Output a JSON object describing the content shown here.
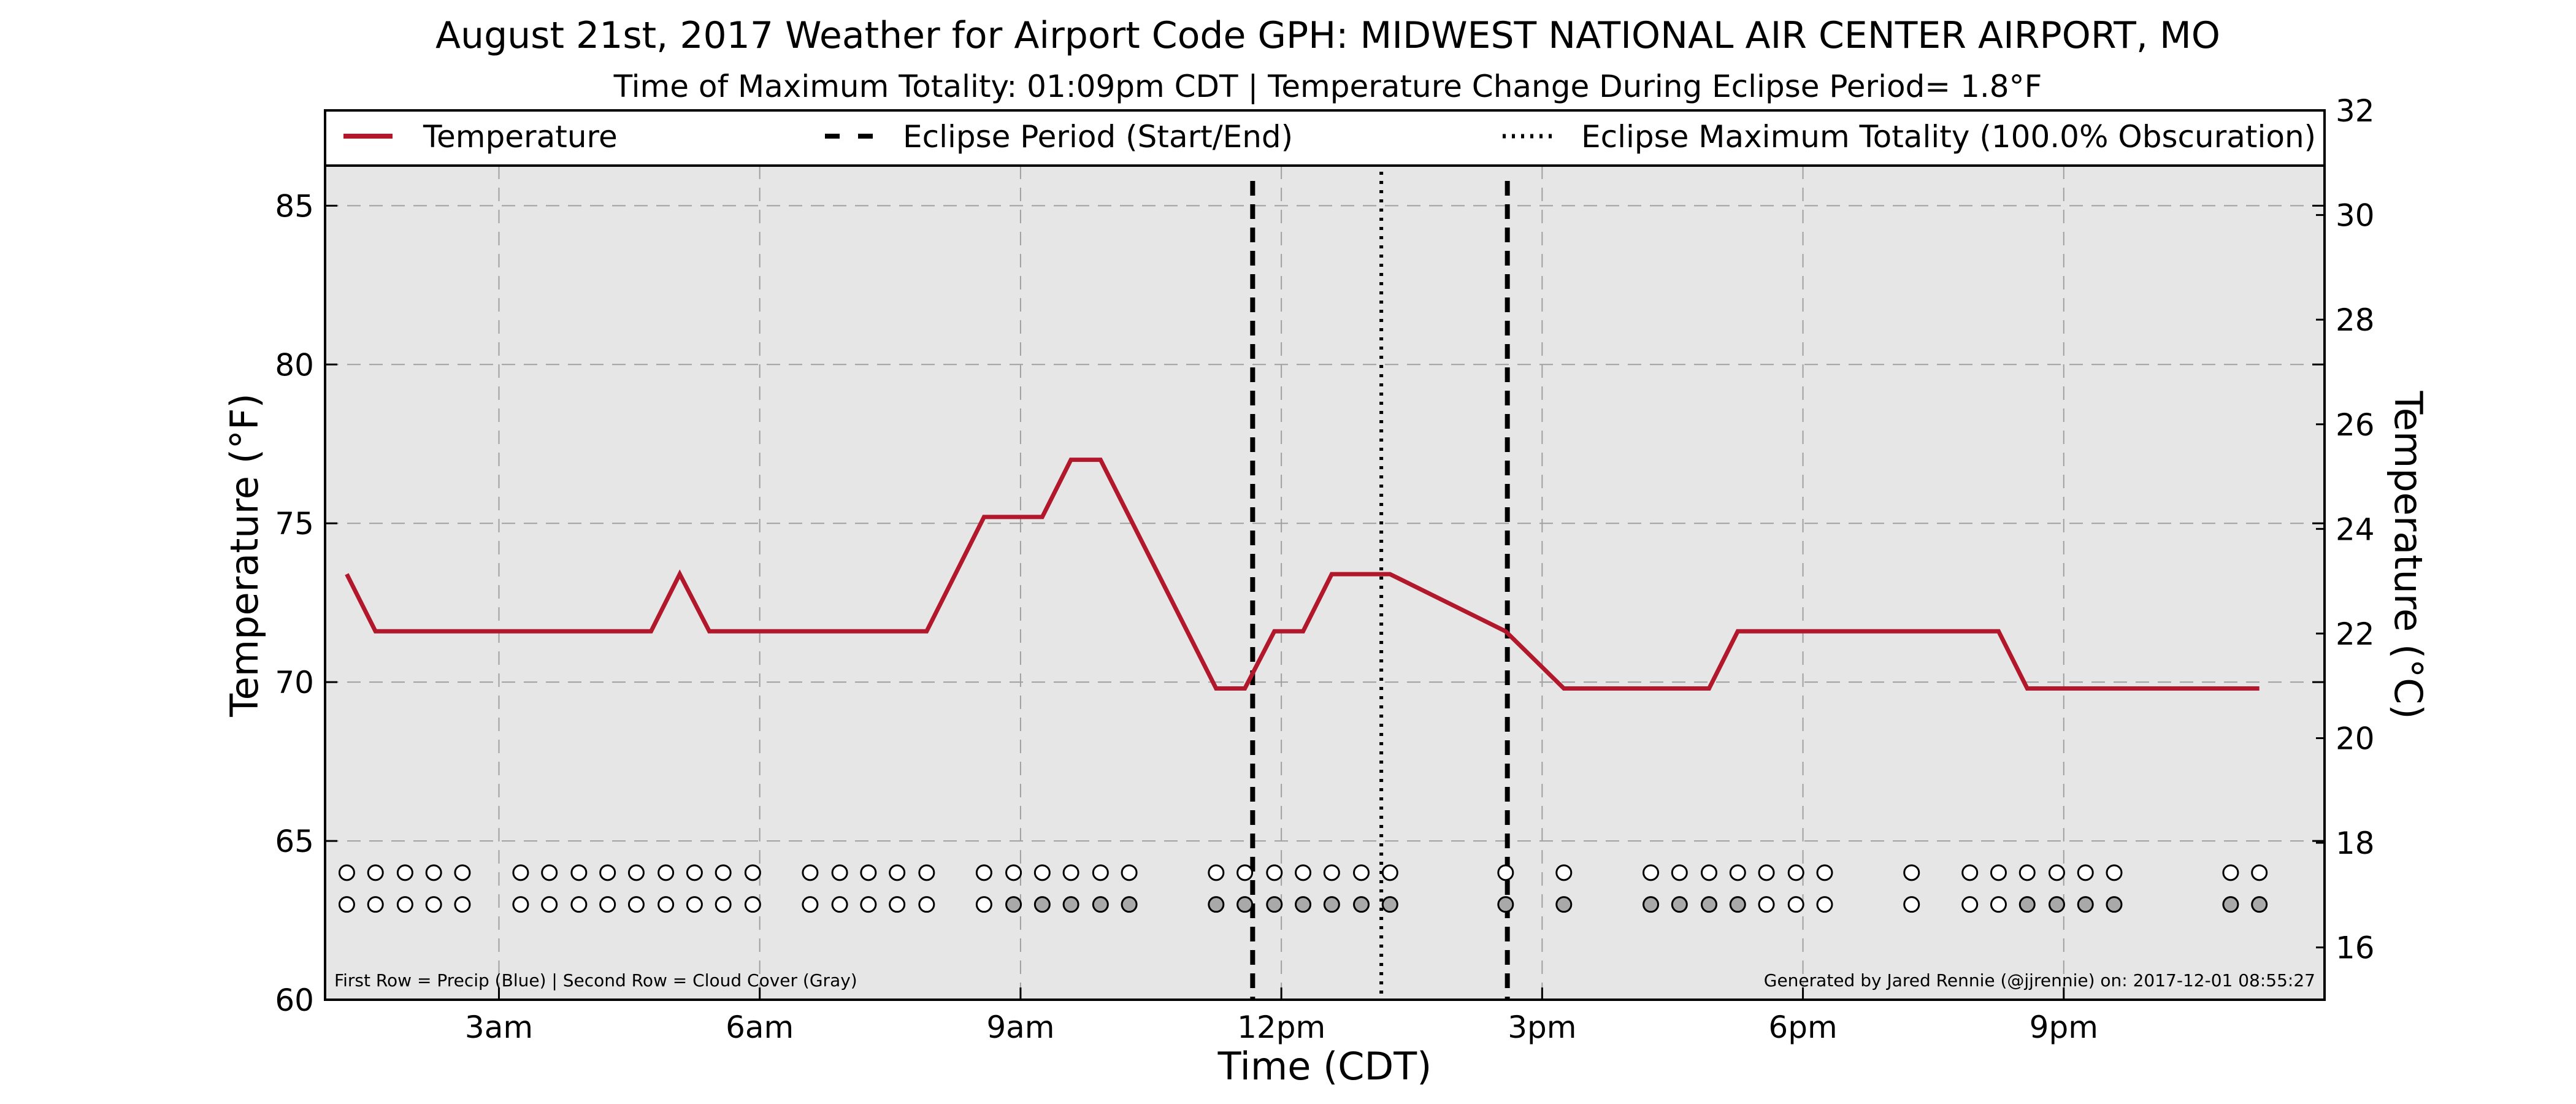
{
  "chart_data": {
    "type": "line",
    "title": "August 21st, 2017 Weather for Airport Code GPH: MIDWEST NATIONAL AIR CENTER AIRPORT, MO",
    "subtitle": "Time of Maximum Totality: 01:09pm CDT | Temperature Change During Eclipse Period= 1.8°F",
    "xlabel": "Time (CDT)",
    "ylabel": "Temperature (°F)",
    "ylabel_right": "Temperature (°C)",
    "xlim": [
      1,
      24
    ],
    "ylim": [
      60,
      88
    ],
    "ylim_right": [
      15,
      32
    ],
    "x_ticks": [
      {
        "x": 3,
        "label": "3am"
      },
      {
        "x": 6,
        "label": "6am"
      },
      {
        "x": 9,
        "label": "9am"
      },
      {
        "x": 12,
        "label": "12pm"
      },
      {
        "x": 15,
        "label": "3pm"
      },
      {
        "x": 18,
        "label": "6pm"
      },
      {
        "x": 21,
        "label": "9pm"
      }
    ],
    "y_ticks": [
      60,
      65,
      70,
      75,
      80,
      85
    ],
    "y_ticks_right": [
      16,
      18,
      20,
      22,
      24,
      26,
      28,
      30,
      32
    ],
    "grid": true,
    "legend_position": "top",
    "legend": [
      {
        "label": "Temperature",
        "style": "solid",
        "color": "#b2182b"
      },
      {
        "label": "Eclipse Period (Start/End)",
        "style": "dashed",
        "color": "#000000"
      },
      {
        "label": "Eclipse Maximum Totality (100.0% Obscuration)",
        "style": "dotted",
        "color": "#000000"
      }
    ],
    "series": [
      {
        "name": "Temperature",
        "color": "#b2182b",
        "points": [
          [
            1.25,
            73.4
          ],
          [
            1.58,
            71.6
          ],
          [
            4.75,
            71.6
          ],
          [
            5.08,
            73.4
          ],
          [
            5.42,
            71.6
          ],
          [
            7.92,
            71.6
          ],
          [
            8.58,
            75.2
          ],
          [
            9.25,
            75.2
          ],
          [
            9.58,
            77.0
          ],
          [
            9.92,
            77.0
          ],
          [
            11.25,
            69.8
          ],
          [
            11.58,
            69.8
          ],
          [
            11.92,
            71.6
          ],
          [
            12.25,
            71.6
          ],
          [
            12.58,
            73.4
          ],
          [
            13.25,
            73.4
          ],
          [
            14.58,
            71.6
          ],
          [
            15.25,
            69.8
          ],
          [
            16.92,
            69.8
          ],
          [
            17.25,
            71.6
          ],
          [
            20.25,
            71.6
          ],
          [
            20.58,
            69.8
          ],
          [
            23.25,
            69.8
          ]
        ]
      }
    ],
    "eclipse_start": 11.67,
    "eclipse_max": 13.15,
    "eclipse_end": 14.6,
    "precip_obs_times": [
      1.25,
      1.58,
      1.92,
      2.25,
      2.58,
      3.25,
      3.58,
      3.92,
      4.25,
      4.58,
      4.92,
      5.25,
      5.58,
      5.92,
      6.58,
      6.92,
      7.25,
      7.58,
      7.92,
      8.58,
      8.92,
      9.25,
      9.58,
      9.92,
      10.25,
      11.25,
      11.58,
      11.92,
      12.25,
      12.58,
      12.92,
      13.25,
      14.58,
      15.25,
      16.25,
      16.58,
      16.92,
      17.25,
      17.58,
      17.92,
      18.25,
      19.25,
      19.92,
      20.25,
      20.58,
      20.92,
      21.25,
      21.58,
      22.92,
      23.25
    ],
    "cloud_cover_shaded_times": [
      8.92,
      9.25,
      9.58,
      9.92,
      10.25,
      11.25,
      11.58,
      11.92,
      12.25,
      12.58,
      12.92,
      13.25,
      14.58,
      15.25,
      16.25,
      16.58,
      16.92,
      17.25,
      20.58,
      20.92,
      21.25,
      21.58,
      22.92,
      23.25
    ],
    "colors": {
      "plot_background": "#e6e6e6",
      "temperature_line": "#b2182b",
      "grid": "#a0a0a0",
      "cloud_shaded": "#a9a9a9",
      "marker_empty": "#ffffff"
    },
    "footnote_left": "First Row = Precip (Blue) | Second Row = Cloud Cover (Gray)",
    "footnote_right": "Generated by Jared Rennie (@jjrennie) on: 2017-12-01 08:55:27"
  }
}
